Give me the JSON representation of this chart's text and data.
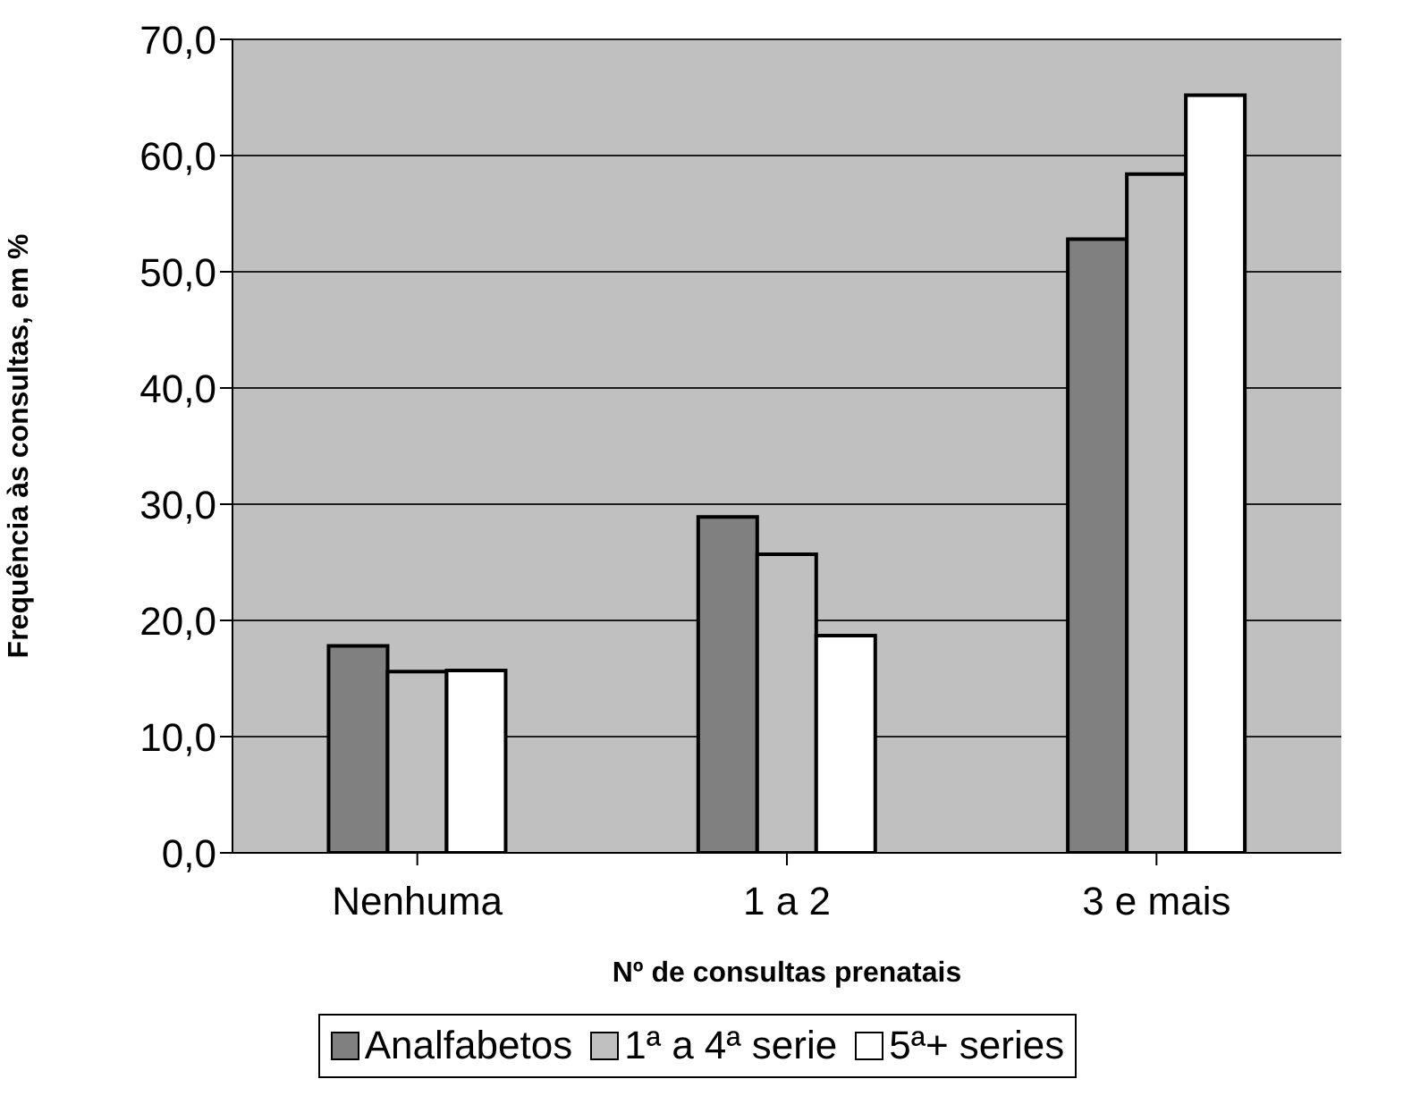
{
  "chart_data": {
    "type": "bar",
    "xlabel": "Nº de consultas prenatais",
    "ylabel": "Frequência às consultas, em %",
    "categories": [
      "Nenhuma",
      "1 a 2",
      "3 e mais"
    ],
    "series": [
      {
        "name": "Analfabetos",
        "color": "#808080",
        "values": [
          17.8,
          28.9,
          52.8
        ]
      },
      {
        "name": "1ª a 4ª serie",
        "color": "#c0c0c0",
        "values": [
          15.6,
          25.7,
          58.4
        ]
      },
      {
        "name": "5ª+ series",
        "color": "#ffffff",
        "values": [
          15.7,
          18.7,
          65.2
        ]
      }
    ],
    "ylim": [
      0,
      70
    ],
    "yticks": [
      {
        "value": 0,
        "label": "0,0"
      },
      {
        "value": 10,
        "label": "10,0"
      },
      {
        "value": 20,
        "label": "20,0"
      },
      {
        "value": 30,
        "label": "30,0"
      },
      {
        "value": 40,
        "label": "40,0"
      },
      {
        "value": 50,
        "label": "50,0"
      },
      {
        "value": 60,
        "label": "60,0"
      },
      {
        "value": 70,
        "label": "70,0"
      }
    ],
    "grid": "y",
    "legend": "bottom"
  }
}
